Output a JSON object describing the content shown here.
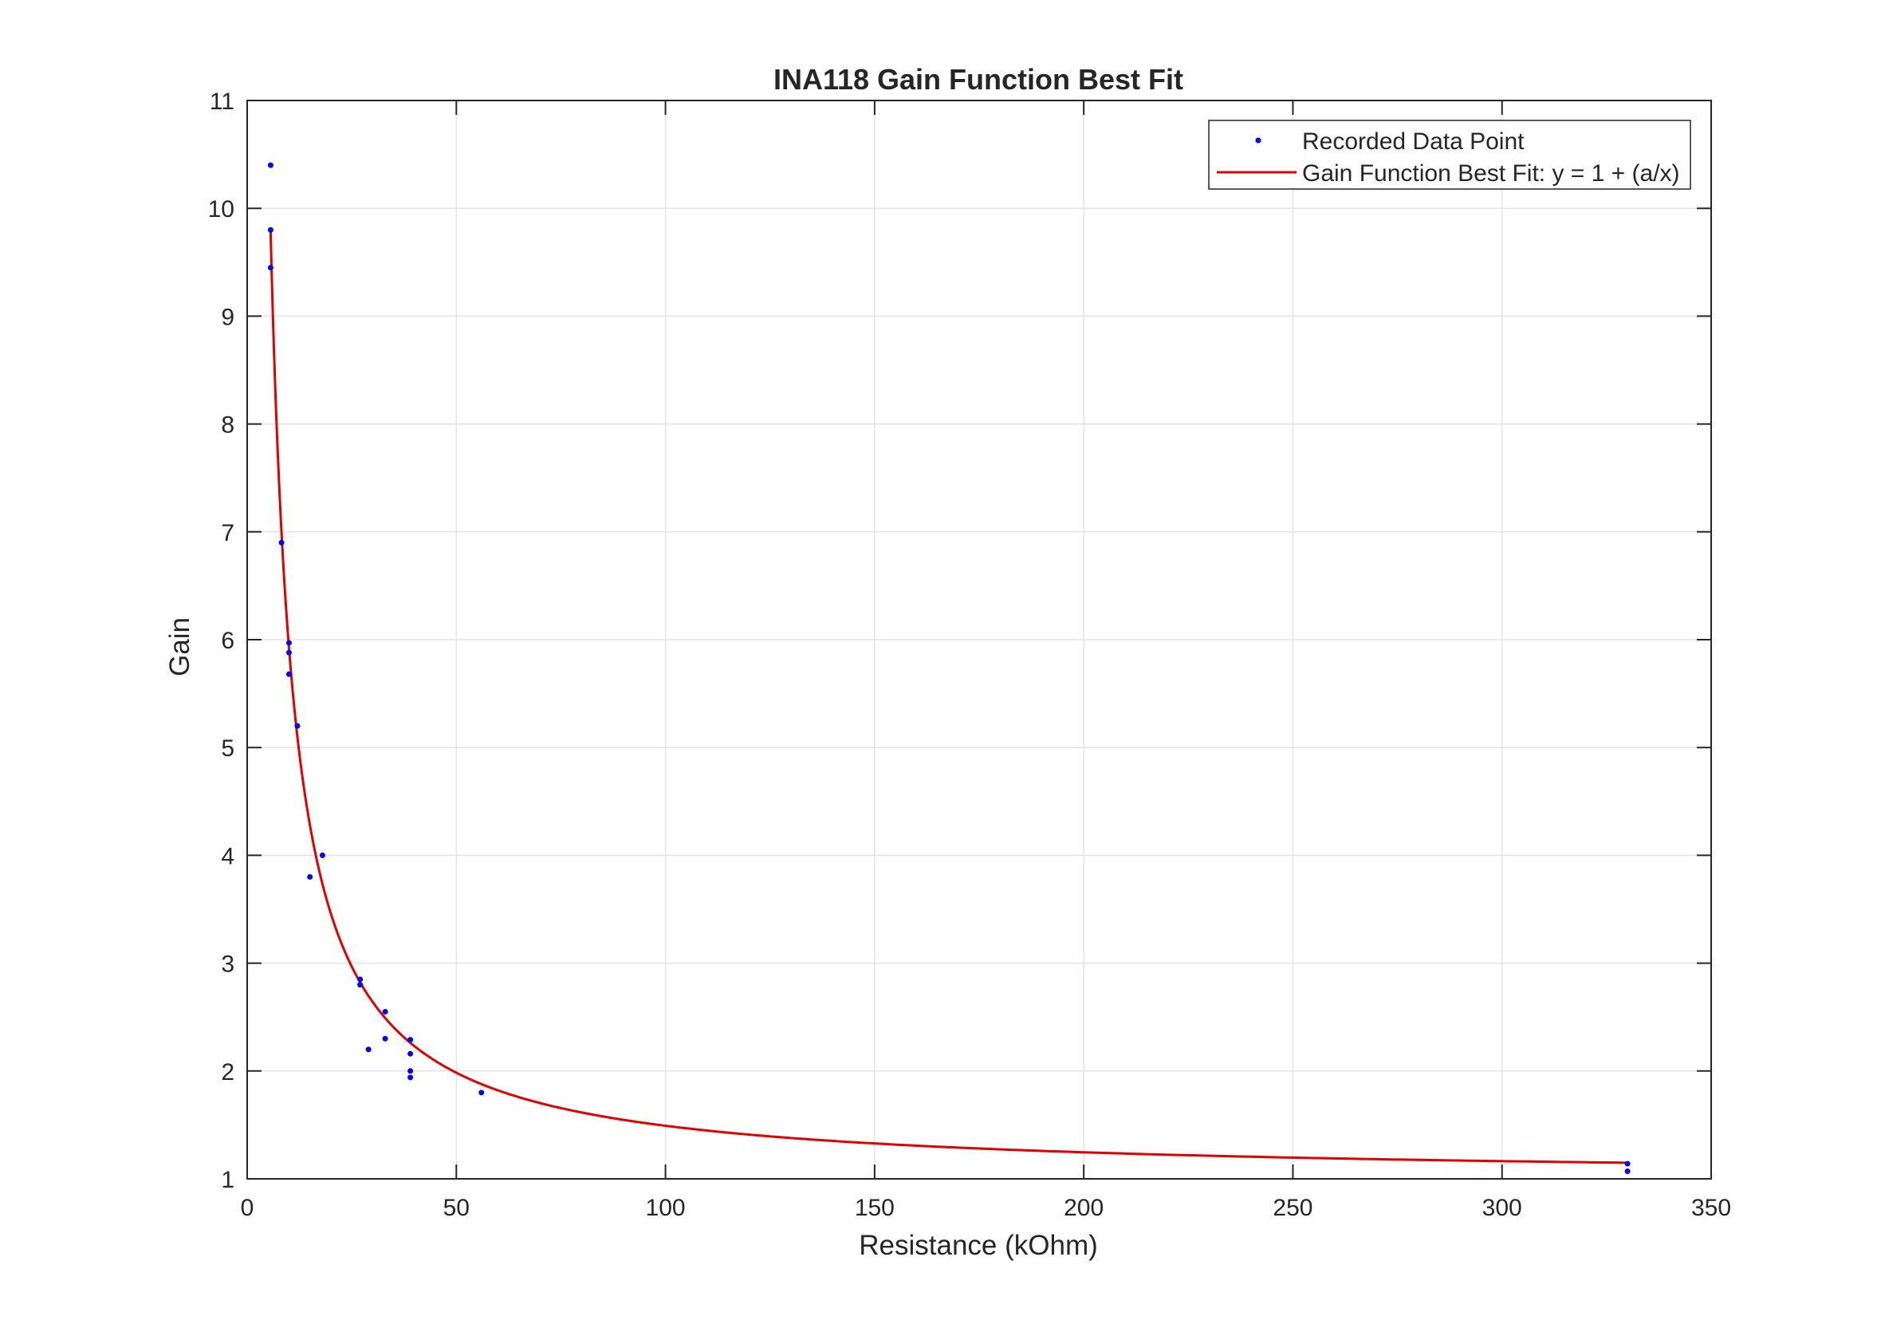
{
  "chart_data": {
    "type": "scatter",
    "title": "INA118 Gain Function Best Fit",
    "xlabel": "Resistance (kOhm)",
    "ylabel": "Gain",
    "xlim": [
      0,
      350
    ],
    "ylim": [
      1,
      11
    ],
    "xticks": [
      "0",
      "50",
      "100",
      "150",
      "200",
      "250",
      "300",
      "350"
    ],
    "yticks": [
      "1",
      "2",
      "3",
      "4",
      "5",
      "6",
      "7",
      "8",
      "9",
      "10",
      "11"
    ],
    "grid": true,
    "legend_placement": "top-right",
    "colors": {
      "points": "#0000ff",
      "fit": "#e00000",
      "axes": "#262626",
      "grid": "#e3e3e3"
    },
    "series": [
      {
        "name": "Recorded Data Point",
        "kind": "points",
        "x": [
          5.6,
          5.6,
          5.6,
          8.2,
          10,
          10,
          10,
          12,
          15,
          18,
          27,
          27,
          29,
          33,
          33,
          39,
          39,
          39,
          39,
          56,
          330,
          330
        ],
        "y": [
          10.4,
          9.8,
          9.45,
          6.9,
          5.97,
          5.88,
          5.68,
          5.2,
          3.8,
          4.0,
          2.85,
          2.8,
          2.2,
          2.55,
          2.3,
          2.29,
          2.16,
          2.0,
          1.94,
          1.8,
          1.14,
          1.07
        ]
      },
      {
        "name": "Gain Function Best Fit: y = 1 + (a/x)",
        "kind": "line",
        "a": 49.2,
        "x_range": [
          5.6,
          330
        ]
      }
    ]
  }
}
